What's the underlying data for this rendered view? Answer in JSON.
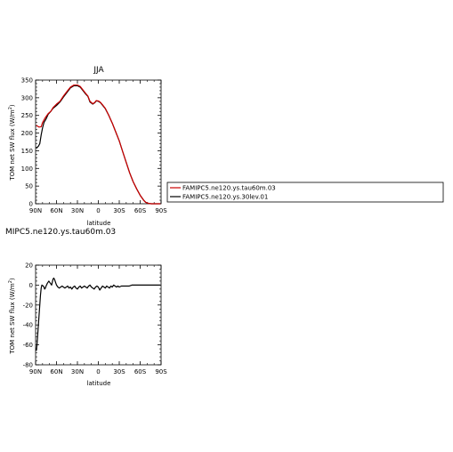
{
  "chart_data": [
    {
      "type": "line",
      "title": "JJA",
      "xlabel": "latitude",
      "ylabel": "TOM net SW flux (W/m",
      "ylabel_sup": "2",
      "ylabel_end": ")",
      "xlim": [
        90,
        -90
      ],
      "ylim": [
        0,
        350
      ],
      "xtick_values": [
        90,
        60,
        30,
        0,
        -30,
        -60,
        -90
      ],
      "xtick_labels": [
        "90N",
        "60N",
        "30N",
        "0",
        "30S",
        "60S",
        "90S"
      ],
      "ytick_values": [
        0,
        50,
        100,
        150,
        200,
        250,
        300,
        350
      ],
      "ytick_labels": [
        "0",
        "50",
        "100",
        "150",
        "200",
        "250",
        "300",
        "350"
      ],
      "series": [
        {
          "name": "FAMIPC5.ne120.ys.tau60m.03",
          "color": "#cc0000",
          "points": [
            [
              89,
              222
            ],
            [
              85,
              217
            ],
            [
              82,
              218
            ],
            [
              80,
              230
            ],
            [
              76,
              244
            ],
            [
              72,
              255
            ],
            [
              68,
              262
            ],
            [
              65,
              272
            ],
            [
              60,
              282
            ],
            [
              55,
              290
            ],
            [
              50,
              305
            ],
            [
              45,
              318
            ],
            [
              40,
              330
            ],
            [
              35,
              336
            ],
            [
              30,
              336
            ],
            [
              26,
              332
            ],
            [
              22,
              322
            ],
            [
              18,
              312
            ],
            [
              15,
              305
            ],
            [
              12,
              290
            ],
            [
              8,
              283
            ],
            [
              5,
              287
            ],
            [
              3,
              292
            ],
            [
              0,
              291
            ],
            [
              -3,
              287
            ],
            [
              -6,
              280
            ],
            [
              -10,
              270
            ],
            [
              -15,
              250
            ],
            [
              -20,
              228
            ],
            [
              -25,
              203
            ],
            [
              -30,
              178
            ],
            [
              -35,
              147
            ],
            [
              -40,
              117
            ],
            [
              -45,
              87
            ],
            [
              -50,
              62
            ],
            [
              -55,
              42
            ],
            [
              -60,
              24
            ],
            [
              -65,
              10
            ],
            [
              -68,
              4
            ],
            [
              -72,
              1
            ],
            [
              -76,
              0
            ],
            [
              -80,
              0
            ],
            [
              -85,
              0
            ],
            [
              -89,
              0
            ]
          ]
        },
        {
          "name": "FAMIPC5.ne120.ys.30lev.01",
          "color": "#000000",
          "points": [
            [
              89,
              157
            ],
            [
              86,
              163
            ],
            [
              84,
              170
            ],
            [
              82,
              195
            ],
            [
              80,
              215
            ],
            [
              78,
              230
            ],
            [
              75,
              240
            ],
            [
              72,
              253
            ],
            [
              68,
              262
            ],
            [
              65,
              270
            ],
            [
              60,
              278
            ],
            [
              55,
              288
            ],
            [
              50,
              302
            ],
            [
              45,
              315
            ],
            [
              40,
              328
            ],
            [
              35,
              334
            ],
            [
              30,
              334
            ],
            [
              26,
              330
            ],
            [
              22,
              320
            ],
            [
              18,
              310
            ],
            [
              15,
              304
            ],
            [
              12,
              288
            ],
            [
              8,
              282
            ],
            [
              5,
              286
            ],
            [
              3,
              291
            ],
            [
              0,
              290
            ],
            [
              -3,
              286
            ],
            [
              -6,
              279
            ],
            [
              -10,
              269
            ],
            [
              -15,
              250
            ],
            [
              -20,
              228
            ],
            [
              -25,
              203
            ],
            [
              -30,
              178
            ],
            [
              -35,
              147
            ],
            [
              -40,
              117
            ],
            [
              -45,
              87
            ],
            [
              -50,
              62
            ],
            [
              -55,
              42
            ],
            [
              -60,
              24
            ],
            [
              -65,
              10
            ],
            [
              -68,
              4
            ],
            [
              -72,
              1
            ],
            [
              -76,
              0
            ],
            [
              -80,
              0
            ],
            [
              -85,
              0
            ],
            [
              -89,
              0
            ]
          ]
        }
      ],
      "legend": "right"
    },
    {
      "type": "line",
      "title": "MIPC5.ne120.ys.tau60m.03",
      "xlabel": "latitude",
      "ylabel": "TOM net SW flux (W/m",
      "ylabel_sup": "2",
      "ylabel_end": ")",
      "xlim": [
        90,
        -90
      ],
      "ylim": [
        -80,
        20
      ],
      "xtick_values": [
        90,
        60,
        30,
        0,
        -30,
        -60,
        -90
      ],
      "xtick_labels": [
        "90N",
        "60N",
        "30N",
        "0",
        "30S",
        "60S",
        "90S"
      ],
      "ytick_values": [
        -80,
        -60,
        -40,
        -20,
        0,
        20
      ],
      "ytick_labels": [
        "-80",
        "-60",
        "-40",
        "-20",
        "0",
        "20"
      ],
      "series": [
        {
          "color": "#000000",
          "points": [
            [
              89,
              -66
            ],
            [
              88,
              -60
            ],
            [
              87,
              -50
            ],
            [
              86,
              -40
            ],
            [
              85,
              -30
            ],
            [
              84,
              -20
            ],
            [
              83,
              -10
            ],
            [
              82,
              -3
            ],
            [
              81,
              0
            ],
            [
              79,
              -1
            ],
            [
              78,
              -2
            ],
            [
              77,
              -4
            ],
            [
              76,
              -3
            ],
            [
              75,
              -1
            ],
            [
              73,
              2
            ],
            [
              71,
              4
            ],
            [
              69,
              2
            ],
            [
              67,
              0
            ],
            [
              66,
              3
            ],
            [
              65,
              6
            ],
            [
              64,
              7
            ],
            [
              63,
              6
            ],
            [
              62,
              4
            ],
            [
              61,
              2
            ],
            [
              60,
              0
            ],
            [
              58,
              -2
            ],
            [
              56,
              -3
            ],
            [
              54,
              -2
            ],
            [
              52,
              -1
            ],
            [
              50,
              -2
            ],
            [
              48,
              -3
            ],
            [
              46,
              -2
            ],
            [
              44,
              -1
            ],
            [
              42,
              -3
            ],
            [
              40,
              -2
            ],
            [
              38,
              -4
            ],
            [
              36,
              -2
            ],
            [
              34,
              -1
            ],
            [
              32,
              -3
            ],
            [
              30,
              -4
            ],
            [
              28,
              -2
            ],
            [
              26,
              -1
            ],
            [
              24,
              -3
            ],
            [
              22,
              -2
            ],
            [
              20,
              -1
            ],
            [
              18,
              -2
            ],
            [
              16,
              -3
            ],
            [
              14,
              -1
            ],
            [
              12,
              0
            ],
            [
              10,
              -2
            ],
            [
              8,
              -3
            ],
            [
              6,
              -4
            ],
            [
              4,
              -2
            ],
            [
              2,
              -1
            ],
            [
              0,
              -2
            ],
            [
              -2,
              -5
            ],
            [
              -4,
              -3
            ],
            [
              -6,
              -1
            ],
            [
              -8,
              -2
            ],
            [
              -10,
              -3
            ],
            [
              -12,
              -1
            ],
            [
              -14,
              -2
            ],
            [
              -16,
              -3
            ],
            [
              -18,
              -1
            ],
            [
              -20,
              -2
            ],
            [
              -22,
              0
            ],
            [
              -24,
              -1
            ],
            [
              -26,
              -2
            ],
            [
              -28,
              -1
            ],
            [
              -30,
              -2
            ],
            [
              -33,
              -1
            ],
            [
              -36,
              -1
            ],
            [
              -40,
              -1
            ],
            [
              -44,
              -1
            ],
            [
              -48,
              0
            ],
            [
              -55,
              0
            ],
            [
              -60,
              0
            ],
            [
              -70,
              0
            ],
            [
              -80,
              0
            ],
            [
              -89,
              0
            ]
          ]
        }
      ]
    }
  ]
}
